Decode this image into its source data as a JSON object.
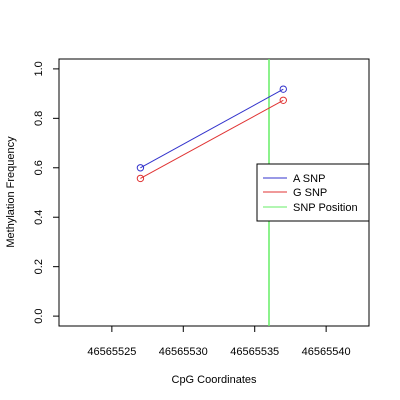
{
  "chart_data": {
    "type": "line",
    "title": "",
    "xlabel": "CpG Coordinates",
    "ylabel": "Methylation Frequency",
    "xlim": [
      46565521.3,
      46565543
    ],
    "ylim": [
      -0.04,
      1.04
    ],
    "x_ticks": [
      46565525,
      46565530,
      46565535,
      46565540
    ],
    "y_ticks": [
      0.0,
      0.2,
      0.4,
      0.6,
      0.8,
      1.0
    ],
    "x_tick_labels": [
      "46565525",
      "46565530",
      "46565535",
      "46565540"
    ],
    "y_tick_labels": [
      "0.0",
      "0.2",
      "0.4",
      "0.6",
      "0.8",
      "1.0"
    ],
    "series": [
      {
        "name": "A SNP",
        "color": "#3333cc",
        "x": [
          46565527,
          46565537
        ],
        "y": [
          0.6,
          0.918
        ]
      },
      {
        "name": "G SNP",
        "color": "#e03333",
        "x": [
          46565527,
          46565537
        ],
        "y": [
          0.557,
          0.873
        ]
      }
    ],
    "snp_position": {
      "name": "SNP Position",
      "color": "#66ee66",
      "x": 46565536
    },
    "legend_position": "right",
    "grid": false
  }
}
